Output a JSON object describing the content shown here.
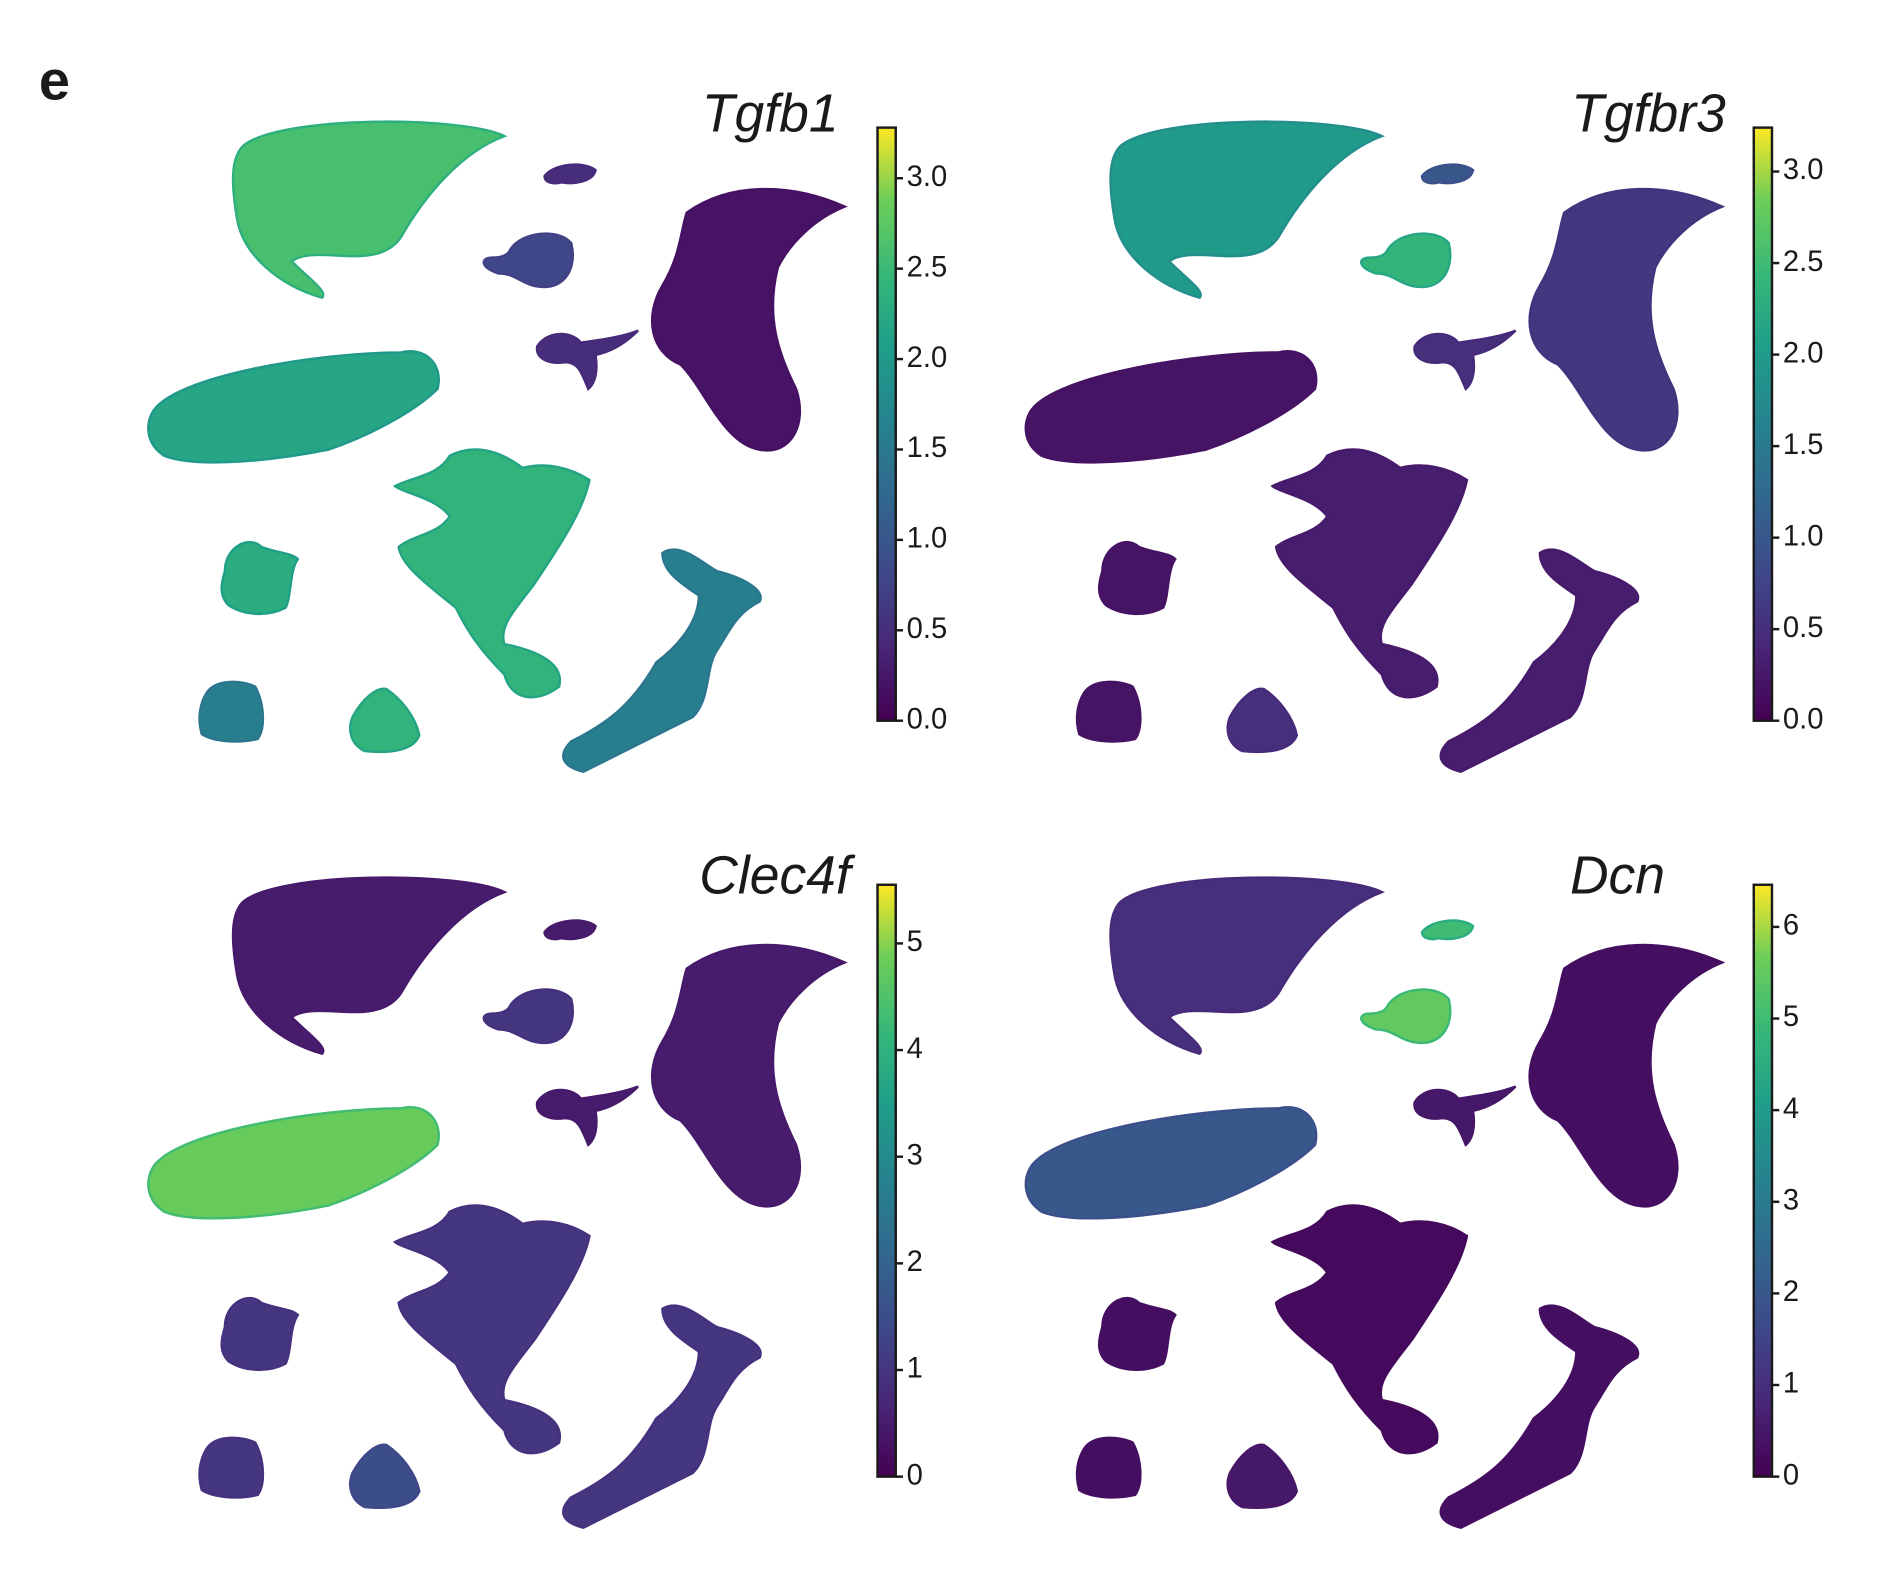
{
  "panel_label": "e",
  "chart_data": [
    {
      "type": "umap",
      "title": "Tgfb1",
      "colormap": "viridis",
      "values": [
        2.6,
        2.2,
        0.5,
        0.8,
        0.5,
        0.2,
        2.4,
        2.3,
        1.6,
        1.6,
        2.4
      ],
      "colorbar": {
        "lim": [
          0,
          3.28
        ],
        "ticks": [
          {
            "value": 0,
            "label": "0.0"
          },
          0.5,
          {
            "value": 1,
            "label": "1.0"
          },
          1.5,
          {
            "value": 2,
            "label": "2.0"
          },
          2.5,
          {
            "value": 3,
            "label": "3.0"
          }
        ]
      }
    },
    {
      "type": "umap",
      "title": "Tgfbr3",
      "colormap": "viridis",
      "values": [
        2.0,
        0.2,
        1.0,
        2.4,
        0.5,
        0.6,
        0.3,
        0.2,
        0.3,
        0.2,
        0.5
      ],
      "colorbar": {
        "lim": [
          0,
          3.24
        ],
        "ticks": [
          {
            "value": 0,
            "label": "0.0"
          },
          0.5,
          {
            "value": 1,
            "label": "1.0"
          },
          1.5,
          {
            "value": 2,
            "label": "2.0"
          },
          2.5,
          {
            "value": 3,
            "label": "3.0"
          }
        ]
      }
    },
    {
      "type": "umap",
      "title": "Clec4f",
      "colormap": "viridis",
      "values": [
        0.5,
        4.8,
        0.5,
        1.0,
        0.5,
        0.5,
        1.0,
        1.0,
        1.0,
        1.0,
        1.5
      ],
      "colorbar": {
        "lim": [
          0,
          5.55
        ],
        "ticks": [
          0,
          1,
          2,
          3,
          4,
          5
        ]
      }
    },
    {
      "type": "umap",
      "title": "Dcn",
      "colormap": "viridis",
      "values": [
        1.0,
        2.0,
        5.0,
        5.5,
        0.5,
        0.3,
        0.2,
        0.3,
        0.3,
        0.3,
        0.5
      ],
      "colorbar": {
        "lim": [
          0,
          6.46
        ],
        "ticks": [
          0,
          1,
          2,
          3,
          4,
          5,
          6
        ]
      }
    }
  ]
}
